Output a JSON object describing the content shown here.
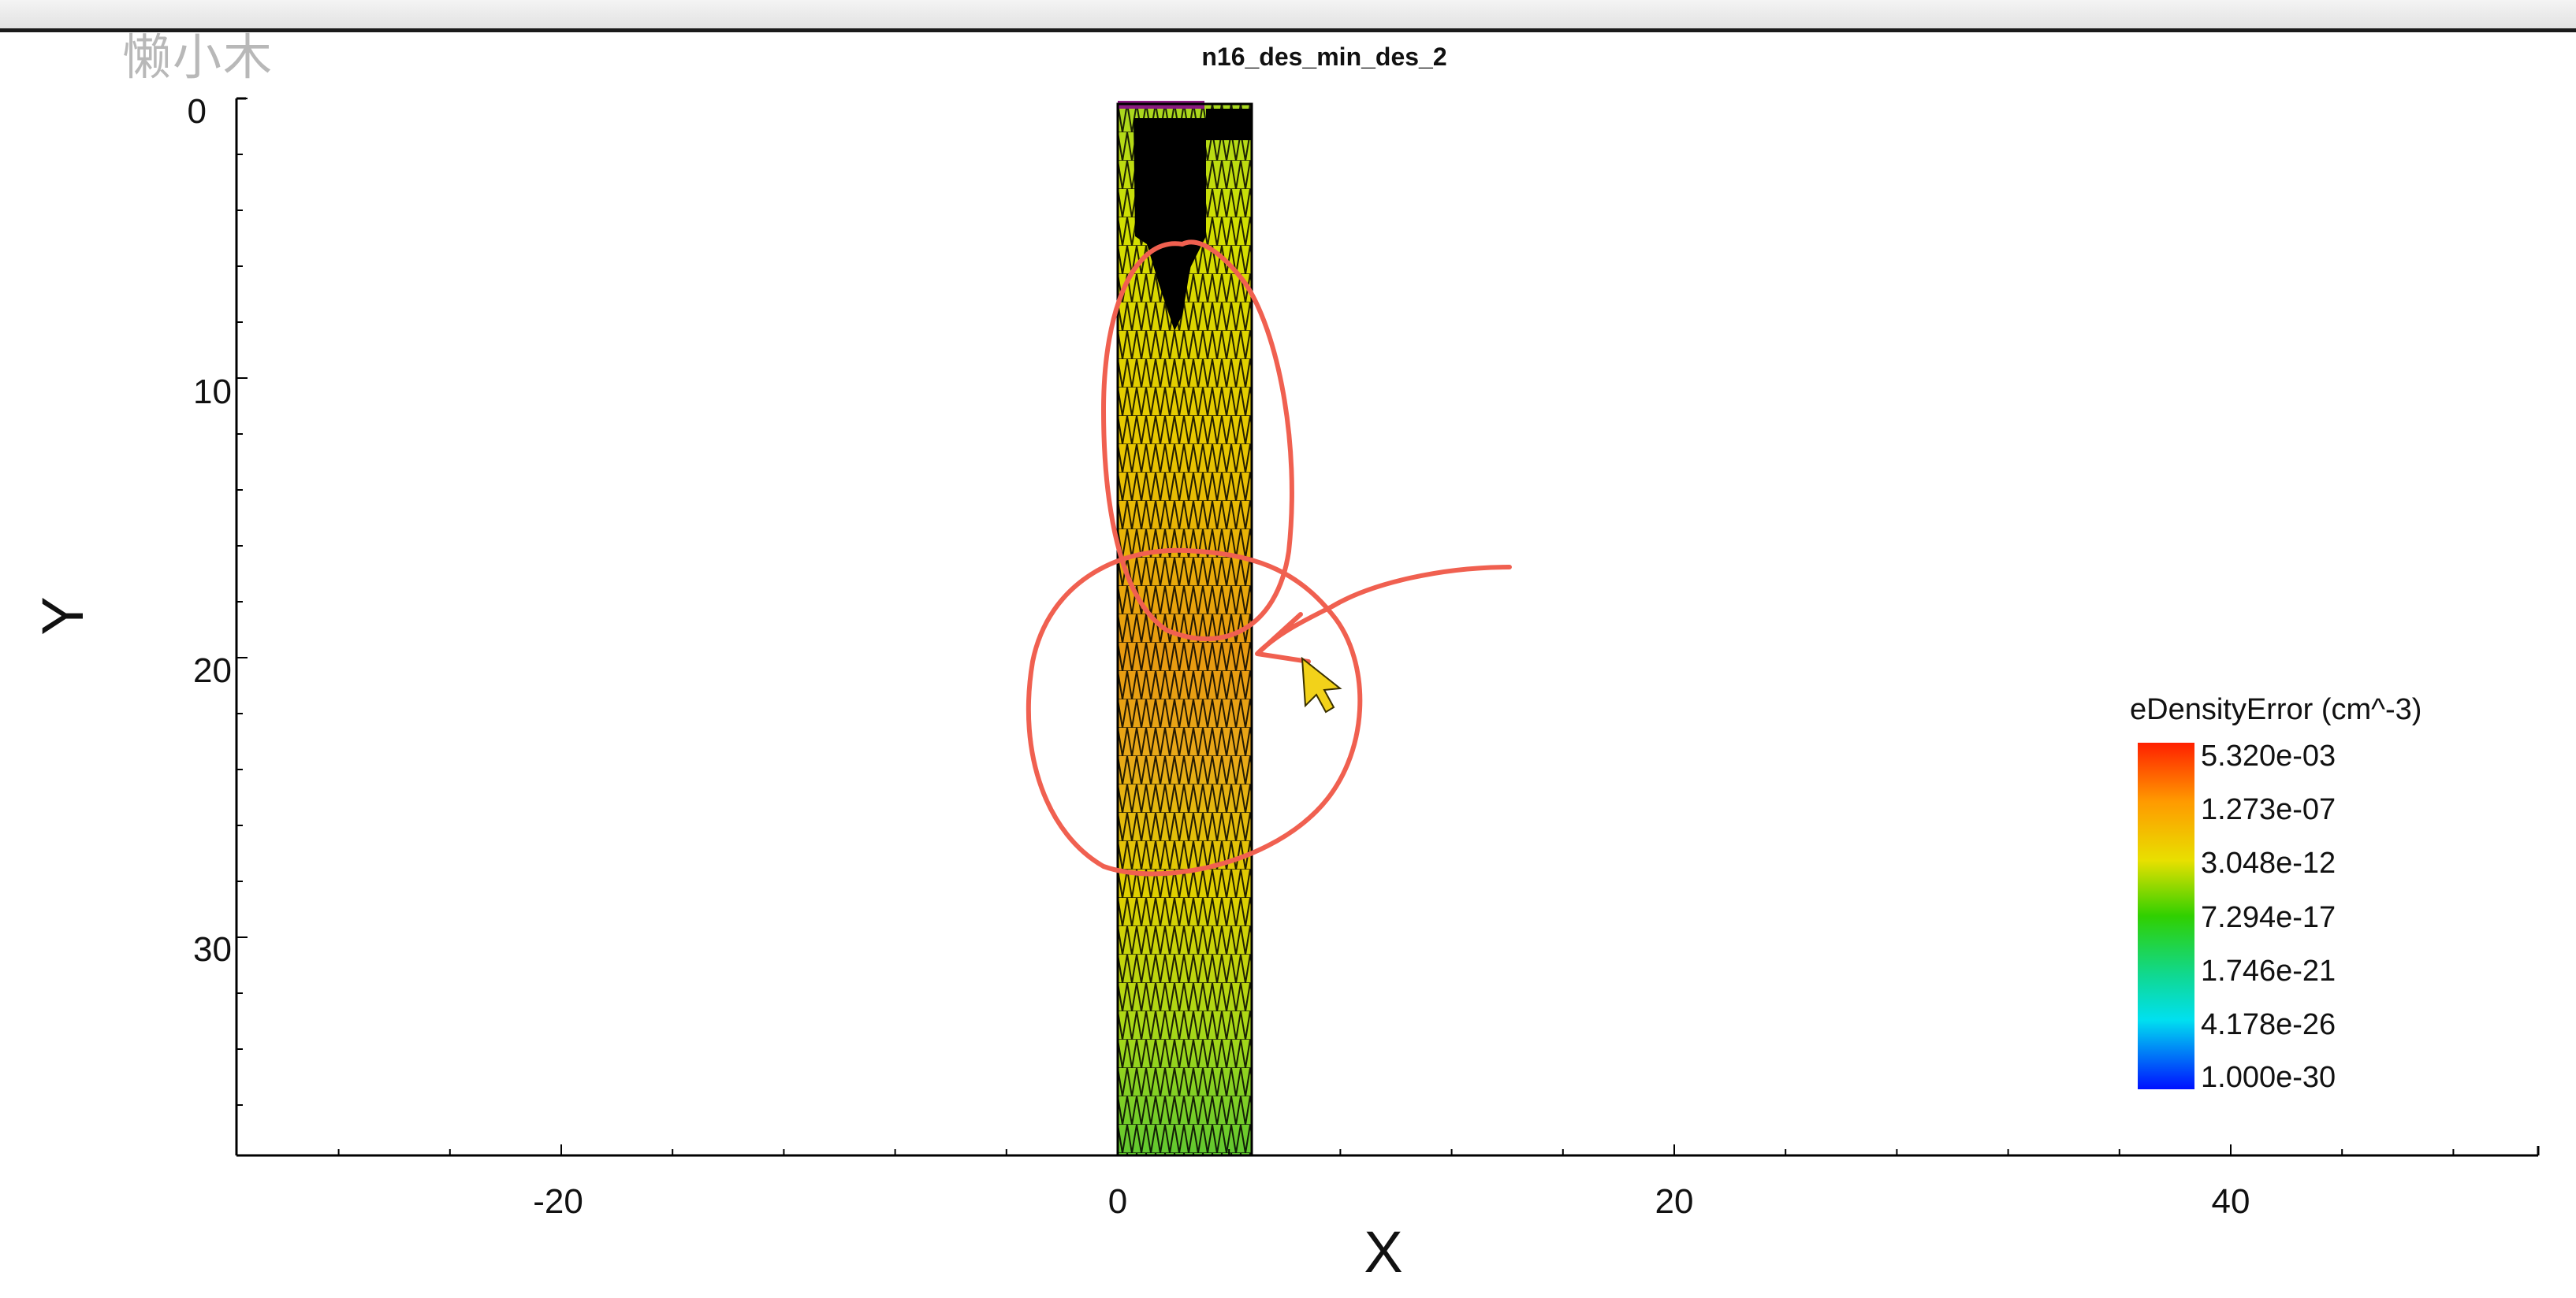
{
  "watermark": "懒小木",
  "plot": {
    "title": "n16_des_min_des_2",
    "x_axis_title": "X",
    "y_axis_title": "Y",
    "x_ticks": [
      "-20",
      "0",
      "20",
      "40"
    ],
    "y_ticks": [
      "0",
      "10",
      "20",
      "30"
    ]
  },
  "legend": {
    "title": "eDensityError (cm^-3)",
    "labels": [
      "5.320e-03",
      "1.273e-07",
      "3.048e-12",
      "7.294e-17",
      "1.746e-21",
      "4.178e-26",
      "1.000e-30"
    ]
  },
  "chart_data": {
    "type": "heatmap",
    "title": "n16_des_min_des_2",
    "xlabel": "X",
    "ylabel": "Y",
    "xlim": [
      -32,
      51
    ],
    "ylim": [
      37.5,
      0
    ],
    "x_ticks": [
      -20,
      0,
      20,
      40
    ],
    "y_ticks": [
      0,
      10,
      20,
      30
    ],
    "device_region": {
      "x": [
        0,
        4.8
      ],
      "y": [
        0,
        37.5
      ]
    },
    "colorbar": {
      "title": "eDensityError (cm^-3)",
      "labels": [
        "5.320e-03",
        "1.273e-07",
        "3.048e-12",
        "7.294e-17",
        "1.746e-21",
        "4.178e-26",
        "1.000e-30"
      ],
      "colors": [
        "#ff2000",
        "#ff9a00",
        "#e8e000",
        "#30d000",
        "#00e8e8",
        "#1060ff",
        "#0010ff"
      ]
    }
  },
  "annotation": {
    "stroke_color": "#f06050"
  },
  "cursor": {
    "color": "#f2d21a"
  }
}
